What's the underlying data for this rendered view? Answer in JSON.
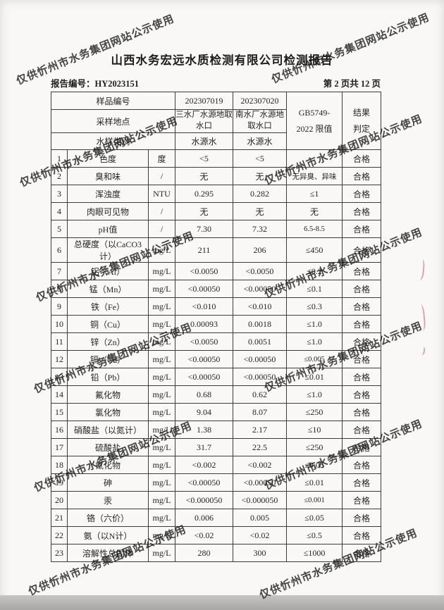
{
  "page": {
    "title": "山西水务宏远水质检测有限公司检测报告",
    "report_no": "报告编号：HY2023151",
    "page_indicator": "第 2 页共 12 页",
    "watermark_text": "仅供忻州市水务集团网站公示使用"
  },
  "table": {
    "header": {
      "sample_no_label": "样品编号",
      "sample_ids": [
        "202307019",
        "202307020"
      ],
      "sampling_site_label": "采样地点",
      "sampling_sites": [
        "三水厂水源地取水口",
        "南水厂水源地取水口"
      ],
      "water_type_label": "水样类别",
      "water_types": [
        "水源水",
        "水源水"
      ],
      "limit_header_line1": "GB5749-",
      "limit_header_line2": "2022 限值",
      "result_header_line1": "结果",
      "result_header_line2": "判定"
    },
    "rows": [
      {
        "no": "1",
        "param": "色度",
        "unit": "度",
        "v1": "<5",
        "v2": "<5",
        "limit": "",
        "result": "合格"
      },
      {
        "no": "2",
        "param": "臭和味",
        "unit": "/",
        "v1": "无",
        "v2": "无",
        "limit": "无异臭、异味",
        "result": "合格"
      },
      {
        "no": "3",
        "param": "浑浊度",
        "unit": "NTU",
        "v1": "0.295",
        "v2": "0.282",
        "limit": "≤1",
        "result": "合格"
      },
      {
        "no": "4",
        "param": "肉眼可见物",
        "unit": "/",
        "v1": "无",
        "v2": "无",
        "limit": "无",
        "result": "合格"
      },
      {
        "no": "5",
        "param": "pH值",
        "unit": "/",
        "v1": "7.30",
        "v2": "7.32",
        "limit": "6.5-8.5",
        "result": "合格"
      },
      {
        "no": "6",
        "param": "总硬度（以CaCO3计）",
        "unit": "mg/L",
        "v1": "211",
        "v2": "206",
        "limit": "≤450",
        "result": "合格"
      },
      {
        "no": "7",
        "param": "铝（Al）",
        "unit": "mg/L",
        "v1": "<0.0050",
        "v2": "<0.0050",
        "limit": "≤0.2",
        "result": "合格"
      },
      {
        "no": "8",
        "param": "锰（Mn）",
        "unit": "mg/L",
        "v1": "<0.00050",
        "v2": "<0.00050",
        "limit": "≤0.1",
        "result": "合格"
      },
      {
        "no": "9",
        "param": "铁（Fe）",
        "unit": "mg/L",
        "v1": "<0.010",
        "v2": "<0.010",
        "limit": "≤0.3",
        "result": "合格"
      },
      {
        "no": "10",
        "param": "铜（Cu）",
        "unit": "mg/L",
        "v1": "0.00093",
        "v2": "0.0018",
        "limit": "≤1.0",
        "result": "合格"
      },
      {
        "no": "11",
        "param": "锌（Zn）",
        "unit": "mg/L",
        "v1": "<0.0050",
        "v2": "0.0051",
        "limit": "≤1.0",
        "result": "合格"
      },
      {
        "no": "12",
        "param": "镉（Cd）",
        "unit": "mg/L",
        "v1": "<0.00050",
        "v2": "<0.00050",
        "limit": "≤0.005",
        "result": "合格"
      },
      {
        "no": "13",
        "param": "铅（Pb）",
        "unit": "mg/L",
        "v1": "<0.00050",
        "v2": "<0.00050",
        "limit": "≤0.01",
        "result": "合格"
      },
      {
        "no": "14",
        "param": "氟化物",
        "unit": "mg/L",
        "v1": "0.68",
        "v2": "0.62",
        "limit": "≤1.0",
        "result": "合格"
      },
      {
        "no": "15",
        "param": "氯化物",
        "unit": "mg/L",
        "v1": "9.04",
        "v2": "8.07",
        "limit": "≤250",
        "result": "合格"
      },
      {
        "no": "16",
        "param": "硝酸盐（以氮计）",
        "unit": "mg/L",
        "v1": "1.38",
        "v2": "2.17",
        "limit": "≤10",
        "result": "合格"
      },
      {
        "no": "17",
        "param": "硫酸盐",
        "unit": "mg/L",
        "v1": "31.7",
        "v2": "22.5",
        "limit": "≤250",
        "result": "合格"
      },
      {
        "no": "18",
        "param": "氰化物",
        "unit": "mg/L",
        "v1": "<0.002",
        "v2": "<0.002",
        "limit": "≤0.05",
        "result": "合格"
      },
      {
        "no": "19",
        "param": "砷",
        "unit": "mg/L",
        "v1": "<0.00050",
        "v2": "<0.00050",
        "limit": "≤0.01",
        "result": "合格"
      },
      {
        "no": "20",
        "param": "汞",
        "unit": "mg/L",
        "v1": "<0.000050",
        "v2": "<0.000050",
        "limit": "≤0.001",
        "result": "合格"
      },
      {
        "no": "21",
        "param": "铬（六价）",
        "unit": "mg/L",
        "v1": "0.006",
        "v2": "0.005",
        "limit": "≤0.05",
        "result": "合格"
      },
      {
        "no": "22",
        "param": "氨（以N计）",
        "unit": "mg/L",
        "v1": "<0.02",
        "v2": "<0.02",
        "limit": "≤0.5",
        "result": "合格"
      },
      {
        "no": "23",
        "param": "溶解性总固体",
        "unit": "mg/L",
        "v1": "280",
        "v2": "300",
        "limit": "≤1000",
        "result": "合格"
      }
    ]
  }
}
